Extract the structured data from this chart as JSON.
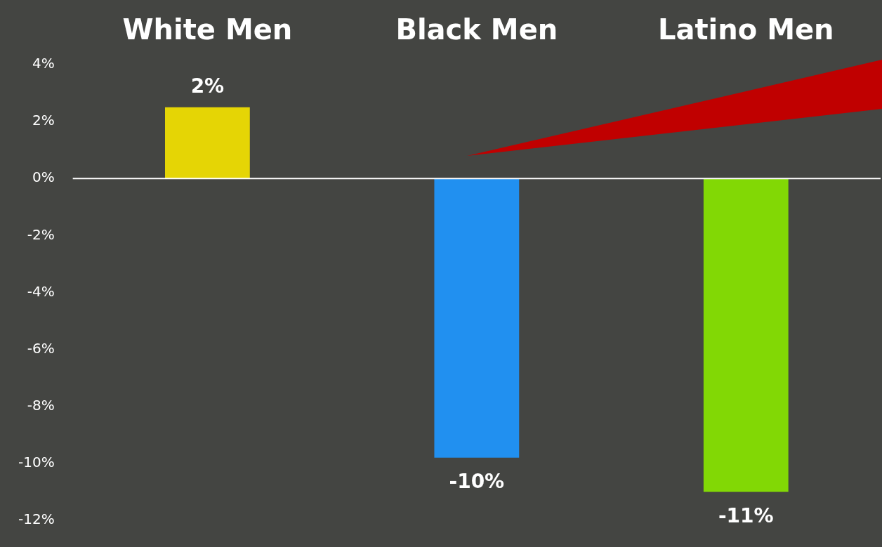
{
  "chart_data": {
    "type": "bar",
    "categories": [
      "White Men",
      "Black Men",
      "Latino Men"
    ],
    "values": [
      2.5,
      -9.8,
      -11
    ],
    "colors": [
      "#e5d505",
      "#2190f0",
      "#82d805"
    ],
    "value_labels": [
      "2%",
      "-10%",
      "-11%"
    ],
    "ylim": [
      -12,
      4
    ],
    "yticks": [
      {
        "value": -12,
        "label": "-12%"
      },
      {
        "value": -10,
        "label": "-10%"
      },
      {
        "value": -8,
        "label": "-8%"
      },
      {
        "value": -6,
        "label": "-6%"
      },
      {
        "value": -4,
        "label": "-4%"
      },
      {
        "value": -2,
        "label": "-2%"
      },
      {
        "value": 0,
        "label": "0%"
      },
      {
        "value": 2,
        "label": "2%"
      },
      {
        "value": 4,
        "label": "4%"
      }
    ],
    "legend": false
  }
}
